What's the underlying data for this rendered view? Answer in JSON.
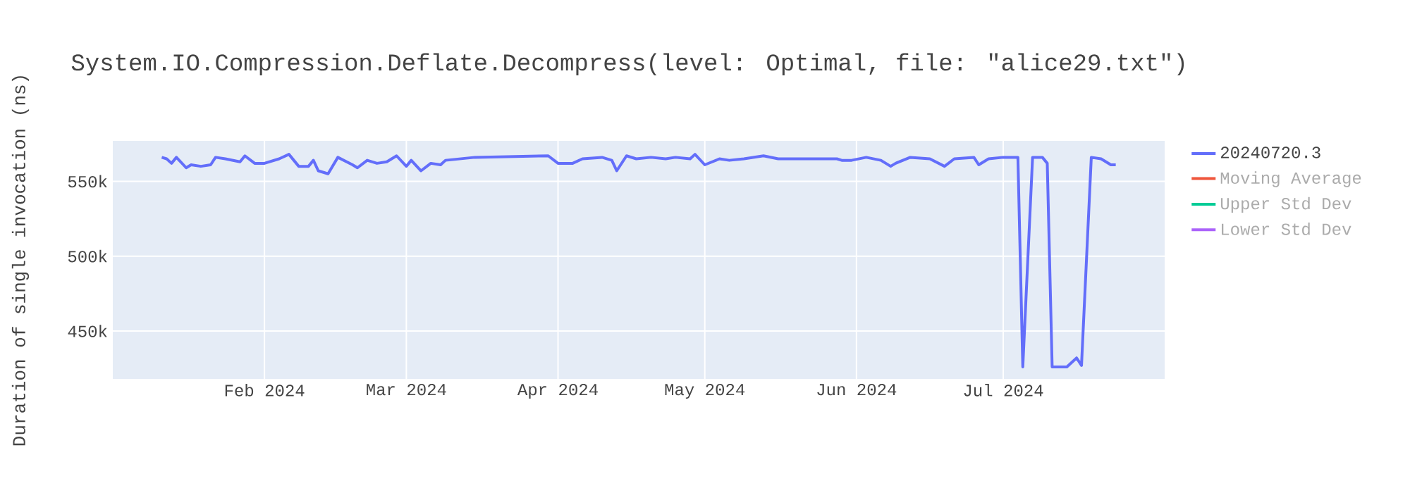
{
  "chart_data": {
    "type": "line",
    "title": "System.IO.Compression.Deflate.Decompress(level: Optimal, file: \"alice29.txt\")",
    "ylabel": "Duration of single invocation (ns)",
    "x": [
      "2024-01-11",
      "2024-01-12",
      "2024-01-13",
      "2024-01-14",
      "2024-01-16",
      "2024-01-17",
      "2024-01-19",
      "2024-01-21",
      "2024-01-22",
      "2024-01-24",
      "2024-01-27",
      "2024-01-28",
      "2024-01-30",
      "2024-02-01",
      "2024-02-04",
      "2024-02-06",
      "2024-02-08",
      "2024-02-10",
      "2024-02-11",
      "2024-02-12",
      "2024-02-14",
      "2024-02-16",
      "2024-02-19",
      "2024-02-20",
      "2024-02-22",
      "2024-02-24",
      "2024-02-26",
      "2024-02-28",
      "2024-03-01",
      "2024-03-02",
      "2024-03-04",
      "2024-03-06",
      "2024-03-08",
      "2024-03-09",
      "2024-03-12",
      "2024-03-15",
      "2024-03-30",
      "2024-04-01",
      "2024-04-04",
      "2024-04-06",
      "2024-04-10",
      "2024-04-12",
      "2024-04-13",
      "2024-04-15",
      "2024-04-17",
      "2024-04-20",
      "2024-04-23",
      "2024-04-25",
      "2024-04-28",
      "2024-04-29",
      "2024-05-01",
      "2024-05-04",
      "2024-05-06",
      "2024-05-09",
      "2024-05-13",
      "2024-05-16",
      "2024-05-19",
      "2024-05-23",
      "2024-05-28",
      "2024-05-29",
      "2024-05-31",
      "2024-06-03",
      "2024-06-06",
      "2024-06-08",
      "2024-06-09",
      "2024-06-12",
      "2024-06-16",
      "2024-06-19",
      "2024-06-21",
      "2024-06-25",
      "2024-06-26",
      "2024-06-28",
      "2024-07-01",
      "2024-07-04",
      "2024-07-05",
      "2024-07-07",
      "2024-07-09",
      "2024-07-10",
      "2024-07-11",
      "2024-07-14",
      "2024-07-16",
      "2024-07-17",
      "2024-07-19",
      "2024-07-21",
      "2024-07-23",
      "2024-07-24"
    ],
    "series": [
      {
        "name": "20240720.3",
        "color": "#636efa",
        "values": [
          566000,
          565000,
          562000,
          566000,
          559000,
          561000,
          560000,
          561000,
          566000,
          565000,
          563000,
          567000,
          562000,
          562000,
          565000,
          568000,
          560000,
          560000,
          564000,
          557000,
          555000,
          566000,
          561000,
          559000,
          564000,
          562000,
          563000,
          567000,
          560000,
          564000,
          557000,
          562000,
          561000,
          564000,
          565000,
          566000,
          567000,
          562000,
          562000,
          565000,
          566000,
          564000,
          557000,
          567000,
          565000,
          566000,
          565000,
          566000,
          565000,
          568000,
          561000,
          565000,
          564000,
          565000,
          567000,
          565000,
          565000,
          565000,
          565000,
          564000,
          564000,
          566000,
          564000,
          560000,
          562000,
          566000,
          565000,
          560000,
          565000,
          566000,
          561000,
          565000,
          566000,
          566000,
          426000,
          566000,
          566000,
          562000,
          426000,
          426000,
          432000,
          427000,
          566000,
          565000,
          561000,
          561000
        ]
      },
      {
        "name": "Moving Average",
        "color": "#ef553b",
        "values": [
          null,
          null,
          null,
          null,
          null,
          null,
          null,
          null,
          null,
          null,
          null,
          null,
          null,
          null,
          null,
          null,
          null,
          null,
          null,
          null,
          null,
          null,
          null,
          null,
          null,
          null,
          null,
          null,
          null,
          null,
          null,
          null,
          null,
          null,
          null,
          null,
          null,
          null,
          null,
          null,
          null,
          null,
          null,
          null,
          null,
          null,
          null,
          null,
          null,
          null,
          null,
          null,
          null,
          null,
          null,
          null,
          null,
          null,
          null,
          null,
          null,
          null,
          null,
          null,
          null,
          null,
          null,
          null,
          null,
          null,
          null,
          null,
          null,
          null,
          null,
          null,
          null,
          null,
          null,
          null,
          null,
          null,
          null,
          null,
          null,
          null
        ]
      },
      {
        "name": "Upper Std Dev",
        "color": "#00cc96",
        "values": [
          null,
          null,
          null,
          null,
          null,
          null,
          null,
          null,
          null,
          null,
          null,
          null,
          null,
          null,
          null,
          null,
          null,
          null,
          null,
          null,
          null,
          null,
          null,
          null,
          null,
          null,
          null,
          null,
          null,
          null,
          null,
          null,
          null,
          null,
          null,
          null,
          null,
          null,
          null,
          null,
          null,
          null,
          null,
          null,
          null,
          null,
          null,
          null,
          null,
          null,
          null,
          null,
          null,
          null,
          null,
          null,
          null,
          null,
          null,
          null,
          null,
          null,
          null,
          null,
          null,
          null,
          null,
          null,
          null,
          null,
          null,
          null,
          null,
          null,
          null,
          null,
          null,
          null,
          null,
          null,
          null,
          null,
          null,
          null,
          null,
          null
        ]
      },
      {
        "name": "Lower Std Dev",
        "color": "#ab63fa",
        "values": [
          null,
          null,
          null,
          null,
          null,
          null,
          null,
          null,
          null,
          null,
          null,
          null,
          null,
          null,
          null,
          null,
          null,
          null,
          null,
          null,
          null,
          null,
          null,
          null,
          null,
          null,
          null,
          null,
          null,
          null,
          null,
          null,
          null,
          null,
          null,
          null,
          null,
          null,
          null,
          null,
          null,
          null,
          null,
          null,
          null,
          null,
          null,
          null,
          null,
          null,
          null,
          null,
          null,
          null,
          null,
          null,
          null,
          null,
          null,
          null,
          null,
          null,
          null,
          null,
          null,
          null,
          null,
          null,
          null,
          null,
          null,
          null,
          null,
          null,
          null,
          null,
          null,
          null,
          null,
          null,
          null,
          null,
          null,
          null,
          null,
          null
        ]
      }
    ],
    "xlim": [
      "2024-01-01",
      "2024-08-03"
    ],
    "xticks": [
      {
        "value": "2024-02-01",
        "label": "Feb 2024"
      },
      {
        "value": "2024-03-01",
        "label": "Mar 2024"
      },
      {
        "value": "2024-04-01",
        "label": "Apr 2024"
      },
      {
        "value": "2024-05-01",
        "label": "May 2024"
      },
      {
        "value": "2024-06-01",
        "label": "Jun 2024"
      },
      {
        "value": "2024-07-01",
        "label": "Jul 2024"
      }
    ],
    "ylim": [
      418000,
      577000
    ],
    "yticks": [
      {
        "value": 450000,
        "label": "450k"
      },
      {
        "value": 500000,
        "label": "500k"
      },
      {
        "value": 550000,
        "label": "550k"
      }
    ],
    "grid": true,
    "legend": "top right",
    "line_style": "solid"
  }
}
